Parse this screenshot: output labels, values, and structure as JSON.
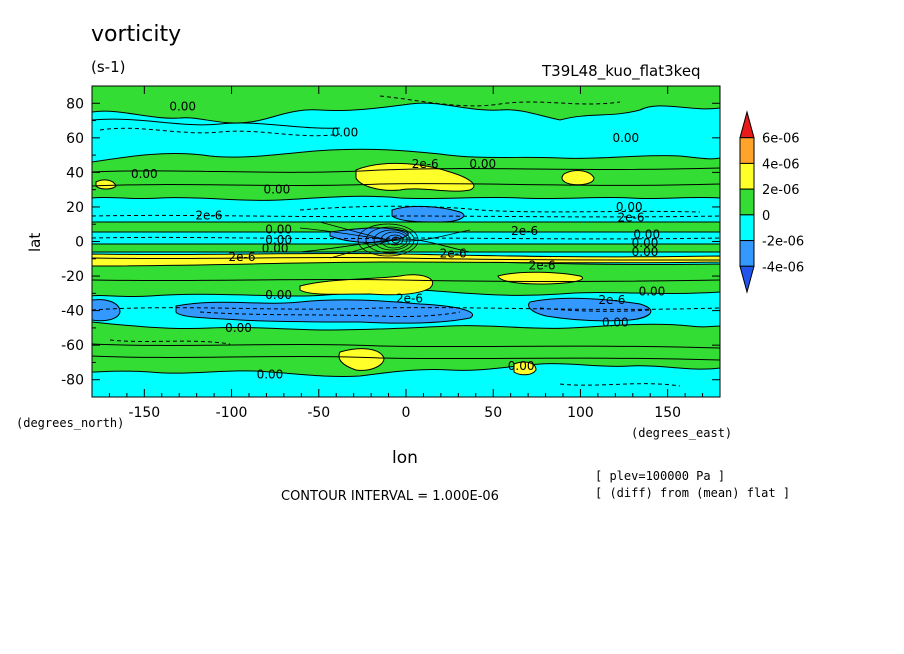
{
  "chart_data": {
    "type": "heatmap",
    "title": "vorticity",
    "units": "(s-1)",
    "run_label": "T39L48_kuo_flat3keq",
    "xlabel": "lon",
    "ylabel": "lat",
    "x_unit": "(degrees_east)",
    "y_unit": "(degrees_north)",
    "xlim": [
      -180,
      180
    ],
    "ylim": [
      -90,
      90
    ],
    "x_ticks": [
      "-150",
      "-100",
      "-50",
      "0",
      "50",
      "100",
      "150"
    ],
    "x_tick_values": [
      -150,
      -100,
      -50,
      0,
      50,
      100,
      150
    ],
    "y_ticks": [
      "80",
      "60",
      "40",
      "20",
      "0",
      "-20",
      "-40",
      "-60",
      "-80"
    ],
    "y_tick_values": [
      80,
      60,
      40,
      20,
      0,
      -20,
      -40,
      -60,
      -80
    ],
    "colorbar": {
      "labels": [
        "6e-06",
        "4e-06",
        "2e-06",
        "0",
        "-2e-06",
        "-4e-06"
      ],
      "colors": [
        "#e81a1a",
        "#ffa32a",
        "#ffff2a",
        "#33dd33",
        "#00ffff",
        "#3399ff",
        "#2255ee"
      ]
    },
    "contour_labels": [
      {
        "text": "0.00",
        "lon": -128,
        "lat": 78
      },
      {
        "text": "0.00",
        "lon": -35,
        "lat": 63
      },
      {
        "text": "0.00",
        "lon": 44,
        "lat": 45
      },
      {
        "text": "0.00",
        "lon": 126,
        "lat": 60
      },
      {
        "text": "0.00",
        "lon": -150,
        "lat": 39
      },
      {
        "text": "0.00",
        "lon": -74,
        "lat": 30
      },
      {
        "text": "2e-6",
        "lon": 11,
        "lat": 45
      },
      {
        "text": "0.00",
        "lon": 128,
        "lat": 20
      },
      {
        "text": "2e-6",
        "lon": -113,
        "lat": 15
      },
      {
        "text": "2e-6",
        "lon": 68,
        "lat": 6
      },
      {
        "text": "2e-6",
        "lon": 129,
        "lat": 14
      },
      {
        "text": "0.00",
        "lon": -73,
        "lat": 7
      },
      {
        "text": "0.00",
        "lon": -73,
        "lat": 1
      },
      {
        "text": "0.00",
        "lon": -75,
        "lat": -4
      },
      {
        "text": "2e-6",
        "lon": -94,
        "lat": -9
      },
      {
        "text": "2e-6",
        "lon": 27,
        "lat": -7
      },
      {
        "text": "0.00",
        "lon": 138,
        "lat": 4
      },
      {
        "text": "0.00",
        "lon": 137,
        "lat": -1
      },
      {
        "text": "0.00",
        "lon": 137,
        "lat": -6
      },
      {
        "text": "2e-6",
        "lon": 78,
        "lat": -14
      },
      {
        "text": "0.00",
        "lon": -73,
        "lat": -31
      },
      {
        "text": "2e-6",
        "lon": 2,
        "lat": -33
      },
      {
        "text": "2e-6",
        "lon": 118,
        "lat": -34
      },
      {
        "text": "0.00",
        "lon": 141,
        "lat": -29
      },
      {
        "text": "0.00",
        "lon": -96,
        "lat": -50
      },
      {
        "text": "0.00",
        "lon": 120,
        "lat": -47
      },
      {
        "text": "0.00",
        "lon": -78,
        "lat": -77
      },
      {
        "text": "0.00",
        "lon": 66,
        "lat": -72
      }
    ]
  },
  "footer": {
    "contour_interval": "CONTOUR INTERVAL = 1.000E-06",
    "plev": "[ plev=100000 Pa ]",
    "diff": "[ (diff) from (mean) flat ]"
  }
}
